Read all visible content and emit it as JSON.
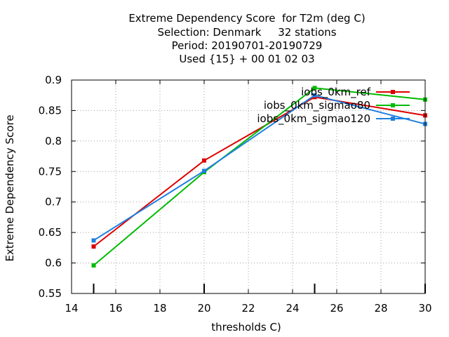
{
  "chart_data": {
    "type": "line",
    "title_lines": [
      "Extreme Dependency Score  for T2m (deg C)",
      "Selection: Denmark     32 stations",
      "Period: 20190701-20190729",
      "Used {15} + 00 01 02 03"
    ],
    "xlabel": "thresholds C)",
    "ylabel": "Extreme Dependency Score",
    "xlim": [
      14,
      30
    ],
    "ylim": [
      0.55,
      0.9
    ],
    "x_ticks": [
      14,
      16,
      18,
      20,
      22,
      24,
      26,
      28,
      30
    ],
    "x_tick_labels": [
      "14",
      "16",
      "18",
      "20",
      "22",
      "24",
      "26",
      "28",
      "30"
    ],
    "y_ticks": [
      0.55,
      0.6,
      0.65,
      0.7,
      0.75,
      0.8,
      0.85,
      0.9
    ],
    "y_tick_labels": [
      "0.55",
      "0.6",
      "0.65",
      "0.7",
      "0.75",
      "0.8",
      "0.85",
      "0.9"
    ],
    "grid": true,
    "legend_position": "top-right",
    "x": [
      15,
      20,
      25,
      30
    ],
    "series": [
      {
        "name": "iobs_0km_ref",
        "color": "#dd0000",
        "values": [
          0.627,
          0.768,
          0.872,
          0.842
        ]
      },
      {
        "name": "iobs_0km_sigmao80",
        "color": "#00bb00",
        "values": [
          0.596,
          0.749,
          0.887,
          0.868
        ]
      },
      {
        "name": "iobs_0km_sigmao120",
        "color": "#1e7fe0",
        "values": [
          0.637,
          0.751,
          0.875,
          0.828
        ]
      }
    ]
  }
}
